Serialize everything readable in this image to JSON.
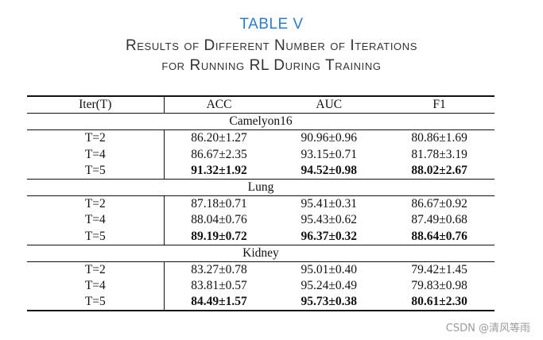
{
  "caption": {
    "label": "TABLE V",
    "line1": "Results of Different Number of Iterations",
    "line2": "for Running RL During Training"
  },
  "table": {
    "headers": [
      "Iter(T)",
      "ACC",
      "AUC",
      "F1"
    ],
    "sections": [
      {
        "name": "Camelyon16",
        "rows": [
          {
            "iter": "T=2",
            "acc": "86.20±1.27",
            "auc": "90.96±0.96",
            "f1": "80.86±1.69",
            "bold": false
          },
          {
            "iter": "T=4",
            "acc": "86.67±2.35",
            "auc": "93.15±0.71",
            "f1": "81.78±3.19",
            "bold": false
          },
          {
            "iter": "T=5",
            "acc": "91.32±1.92",
            "auc": "94.52±0.98",
            "f1": "88.02±2.67",
            "bold": true
          }
        ]
      },
      {
        "name": "Lung",
        "rows": [
          {
            "iter": "T=2",
            "acc": "87.18±0.71",
            "auc": "95.41±0.31",
            "f1": "86.67±0.92",
            "bold": false
          },
          {
            "iter": "T=4",
            "acc": "88.04±0.76",
            "auc": "95.43±0.62",
            "f1": "87.49±0.68",
            "bold": false
          },
          {
            "iter": "T=5",
            "acc": "89.19±0.72",
            "auc": "96.37±0.32",
            "f1": "88.64±0.76",
            "bold": true
          }
        ]
      },
      {
        "name": "Kidney",
        "rows": [
          {
            "iter": "T=2",
            "acc": "83.27±0.78",
            "auc": "95.01±0.40",
            "f1": "79.42±1.45",
            "bold": false
          },
          {
            "iter": "T=4",
            "acc": "83.81±0.57",
            "auc": "95.24±0.49",
            "f1": "79.83±0.98",
            "bold": false
          },
          {
            "iter": "T=5",
            "acc": "84.49±1.57",
            "auc": "95.73±0.38",
            "f1": "80.61±2.30",
            "bold": true
          }
        ]
      }
    ]
  },
  "watermark": "CSDN @清风等雨"
}
